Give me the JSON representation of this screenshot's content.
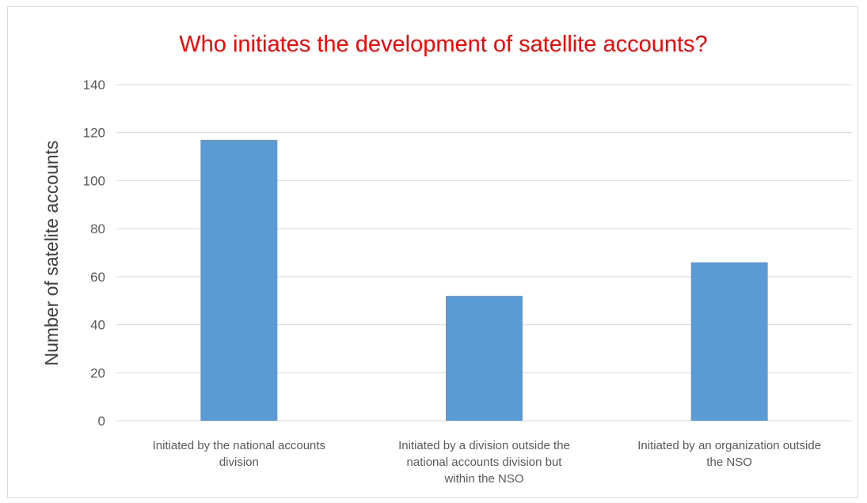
{
  "chart_data": {
    "type": "bar",
    "title": "Who initiates the development of satellite accounts?",
    "xlabel": "",
    "ylabel": "Number of satelite accounts",
    "ylim": [
      0,
      140
    ],
    "yticks": [
      0,
      20,
      40,
      60,
      80,
      100,
      120,
      140
    ],
    "grid": true,
    "legend": "none",
    "colors": {
      "bar": "#5b9bd5",
      "grid": "#d9d9d9",
      "title": "#ff0000"
    },
    "categories": [
      [
        "Initiated by the national accounts",
        "division"
      ],
      [
        "Initiated by a division outside the",
        "national accounts division but",
        "within the NSO"
      ],
      [
        "Initiated by an organization outside",
        "the NSO"
      ]
    ],
    "values": [
      117,
      52,
      66
    ]
  }
}
